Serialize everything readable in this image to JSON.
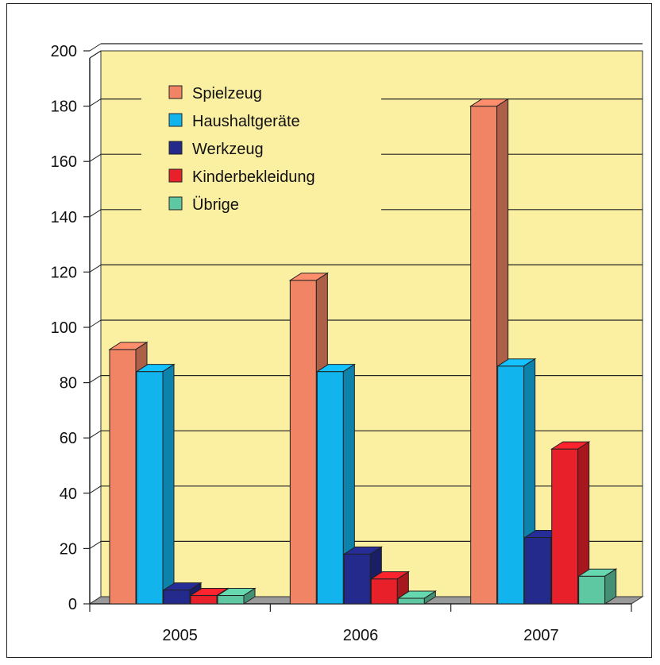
{
  "chart_data": {
    "type": "bar",
    "style": "3d-clustered-column",
    "categories": [
      "2005",
      "2006",
      "2007"
    ],
    "series": [
      {
        "name": "Spielzeug",
        "color": "#f08464",
        "values": [
          92,
          117,
          180
        ]
      },
      {
        "name": "Haushaltgeräte",
        "color": "#12b4ee",
        "values": [
          84,
          84,
          86
        ]
      },
      {
        "name": "Werkzeug",
        "color": "#232a8c",
        "values": [
          5,
          18,
          24
        ]
      },
      {
        "name": "Kinderbekleidung",
        "color": "#e8202a",
        "values": [
          3,
          9,
          56
        ]
      },
      {
        "name": "Übrige",
        "color": "#5ec8a2",
        "values": [
          3,
          2,
          10
        ]
      }
    ],
    "ylim": [
      0,
      200
    ],
    "yticks": [
      "0",
      "20",
      "40",
      "60",
      "80",
      "100",
      "120",
      "140",
      "160",
      "180",
      "200"
    ],
    "xlabel": "",
    "ylabel": "",
    "title": "",
    "grid": true,
    "legend_position": "top-left (inside plot)",
    "background_color": "#fbf0a2"
  }
}
